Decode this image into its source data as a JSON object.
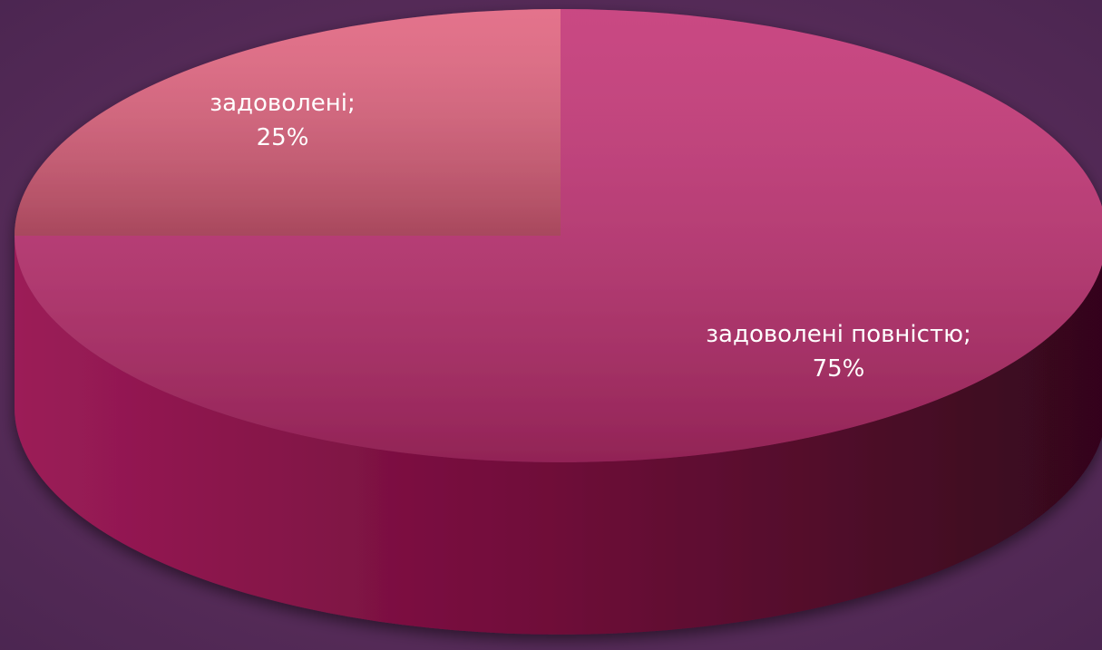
{
  "chart_data": {
    "type": "pie",
    "categories": [
      "задоволені;",
      "задоволені повністю;"
    ],
    "values": [
      25,
      75
    ],
    "value_labels": [
      "25%",
      "75%"
    ],
    "colors": [
      "#e0607c",
      "#c22f72"
    ],
    "start_angle": -90,
    "direction": "counterclockwise",
    "style": "3d"
  }
}
